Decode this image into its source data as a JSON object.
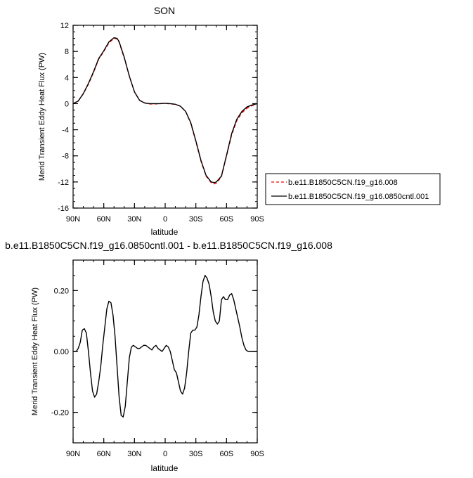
{
  "chart_data": [
    {
      "type": "line",
      "title": "SON",
      "xlabel": "latitude",
      "ylabel": "Merid Transient Eddy Heat Flux (PW)",
      "xlim": [
        90,
        -90
      ],
      "ylim": [
        -16,
        12
      ],
      "x_ticks": [
        90,
        60,
        30,
        0,
        -30,
        -60,
        -90
      ],
      "x_tick_labels": [
        "90N",
        "60N",
        "30N",
        "0",
        "30S",
        "60S",
        "90S"
      ],
      "y_ticks": [
        12,
        8,
        4,
        0,
        -4,
        -8,
        -12,
        -16
      ],
      "y_tick_labels": [
        "12",
        "8",
        "4",
        "0",
        "-4",
        "-8",
        "-12",
        "-16"
      ],
      "legend_position": "right",
      "series": [
        {
          "name": "b.e11.B1850C5CN.f19_g16.008",
          "color": "#ff0000",
          "dash": "dashed",
          "x": [
            90,
            85,
            80,
            75,
            70,
            65,
            60,
            55,
            50,
            47,
            45,
            40,
            35,
            30,
            25,
            20,
            15,
            10,
            5,
            0,
            -5,
            -10,
            -15,
            -20,
            -25,
            -30,
            -35,
            -40,
            -45,
            -48,
            -50,
            -55,
            -60,
            -65,
            -70,
            -75,
            -80,
            -85,
            -90
          ],
          "y": [
            0,
            0.4,
            1.5,
            3.0,
            4.8,
            6.8,
            8.0,
            9.3,
            10.0,
            9.9,
            9.4,
            7.0,
            4.2,
            1.8,
            0.5,
            0.1,
            -0.05,
            -0.05,
            0.0,
            0.05,
            -0.05,
            -0.1,
            -0.4,
            -1.2,
            -3.0,
            -5.8,
            -8.8,
            -11.1,
            -12.1,
            -12.3,
            -12.2,
            -11.2,
            -8.0,
            -4.8,
            -2.6,
            -1.4,
            -0.7,
            -0.3,
            0
          ]
        },
        {
          "name": "b.e11.B1850C5CN.f19_g16.0850cntl.001",
          "color": "#000000",
          "dash": "solid",
          "x": [
            90,
            85,
            80,
            75,
            70,
            65,
            60,
            55,
            50,
            47,
            45,
            40,
            35,
            30,
            25,
            20,
            15,
            10,
            5,
            0,
            -5,
            -10,
            -15,
            -20,
            -25,
            -30,
            -35,
            -40,
            -45,
            -48,
            -50,
            -55,
            -60,
            -65,
            -70,
            -75,
            -80,
            -85,
            -90
          ],
          "y": [
            0,
            0.4,
            1.55,
            3.1,
            4.9,
            6.9,
            8.1,
            9.45,
            10.1,
            10.0,
            9.5,
            7.1,
            4.2,
            1.8,
            0.5,
            0.1,
            0.0,
            0.0,
            0.0,
            0.05,
            0.0,
            -0.1,
            -0.4,
            -1.2,
            -2.9,
            -5.7,
            -8.7,
            -11.0,
            -12.0,
            -12.1,
            -12.0,
            -11.1,
            -7.9,
            -4.6,
            -2.4,
            -1.2,
            -0.5,
            -0.2,
            0
          ]
        }
      ]
    },
    {
      "type": "line",
      "title": "b.e11.B1850C5CN.f19_g16.0850cntl.001 - b.e11.B1850C5CN.f19_g16.008",
      "xlabel": "latitude",
      "ylabel": "Merid Transient Eddy Heat Flux (PW)",
      "xlim": [
        90,
        -90
      ],
      "ylim": [
        -0.3,
        0.3
      ],
      "x_ticks": [
        90,
        60,
        30,
        0,
        -30,
        -60,
        -90
      ],
      "x_tick_labels": [
        "90N",
        "60N",
        "30N",
        "0",
        "30S",
        "60S",
        "90S"
      ],
      "y_ticks": [
        0.2,
        0.0,
        -0.2
      ],
      "y_tick_labels": [
        "0.20",
        "0.00",
        "-0.20"
      ],
      "series": [
        {
          "color": "#000000",
          "dash": "solid",
          "x": [
            90,
            87,
            85,
            83,
            81,
            79,
            77,
            75,
            73,
            71,
            69,
            67,
            65,
            63,
            61,
            59,
            57,
            55,
            53,
            51,
            49,
            47,
            45,
            43,
            41,
            39,
            37,
            35,
            33,
            31,
            29,
            27,
            25,
            23,
            21,
            19,
            17,
            15,
            13,
            11,
            9,
            7,
            5,
            3,
            1,
            -1,
            -3,
            -5,
            -7,
            -9,
            -11,
            -13,
            -15,
            -17,
            -19,
            -21,
            -23,
            -25,
            -27,
            -29,
            -31,
            -33,
            -35,
            -37,
            -39,
            -41,
            -43,
            -45,
            -47,
            -49,
            -51,
            -53,
            -55,
            -57,
            -59,
            -61,
            -63,
            -65,
            -67,
            -69,
            -71,
            -73,
            -75,
            -77,
            -79,
            -81,
            -83,
            -85,
            -87,
            -90
          ],
          "y": [
            0,
            0,
            0.01,
            0.03,
            0.07,
            0.075,
            0.06,
            0.0,
            -0.07,
            -0.13,
            -0.15,
            -0.14,
            -0.1,
            -0.05,
            0.02,
            0.08,
            0.14,
            0.165,
            0.16,
            0.12,
            0.05,
            -0.05,
            -0.15,
            -0.21,
            -0.215,
            -0.18,
            -0.1,
            -0.02,
            0.015,
            0.02,
            0.015,
            0.01,
            0.01,
            0.015,
            0.02,
            0.02,
            0.015,
            0.01,
            0.005,
            0.015,
            0.02,
            0.01,
            0.005,
            0.0,
            0.01,
            0.02,
            0.015,
            0.0,
            -0.03,
            -0.06,
            -0.07,
            -0.1,
            -0.13,
            -0.14,
            -0.12,
            -0.07,
            0.0,
            0.06,
            0.07,
            0.07,
            0.08,
            0.12,
            0.18,
            0.23,
            0.25,
            0.24,
            0.22,
            0.18,
            0.13,
            0.1,
            0.09,
            0.1,
            0.17,
            0.18,
            0.17,
            0.17,
            0.185,
            0.19,
            0.17,
            0.14,
            0.11,
            0.08,
            0.045,
            0.02,
            0.005,
            0.0,
            0.0,
            0.0,
            0.0,
            0
          ]
        }
      ]
    }
  ]
}
